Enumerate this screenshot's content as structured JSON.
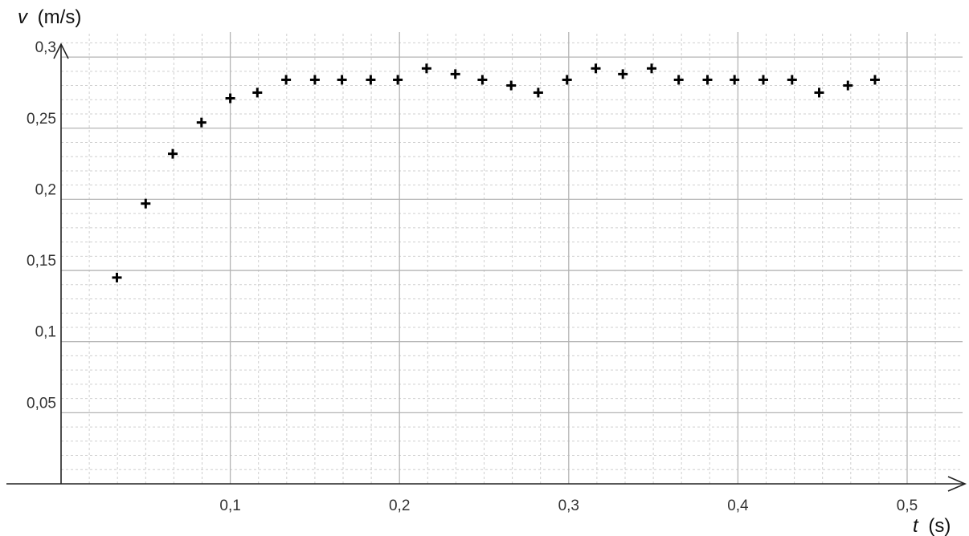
{
  "chart_data": {
    "type": "scatter",
    "title": "",
    "xlabel": {
      "symbol": "t",
      "unit": "(s)"
    },
    "ylabel": {
      "symbol": "v",
      "unit": "(m/s)"
    },
    "xlim": [
      0,
      0.53
    ],
    "ylim": [
      0,
      0.3
    ],
    "grid": true,
    "x_ticks": [
      {
        "value": 0.1,
        "label": "0,1"
      },
      {
        "value": 0.2,
        "label": "0,2"
      },
      {
        "value": 0.3,
        "label": "0,3"
      },
      {
        "value": 0.4,
        "label": "0,4"
      },
      {
        "value": 0.5,
        "label": "0,5"
      }
    ],
    "y_ticks": [
      {
        "value": 0.05,
        "label": "0,05"
      },
      {
        "value": 0.1,
        "label": "0,1"
      },
      {
        "value": 0.15,
        "label": "0,15"
      },
      {
        "value": 0.2,
        "label": "0,2"
      },
      {
        "value": 0.25,
        "label": "0,25"
      },
      {
        "value": 0.3,
        "label": "0,3"
      }
    ],
    "marker": "plus",
    "marker_color": "#000000",
    "points": [
      {
        "x": 0.033,
        "y": 0.145
      },
      {
        "x": 0.05,
        "y": 0.197
      },
      {
        "x": 0.066,
        "y": 0.232
      },
      {
        "x": 0.083,
        "y": 0.254
      },
      {
        "x": 0.1,
        "y": 0.271
      },
      {
        "x": 0.116,
        "y": 0.275
      },
      {
        "x": 0.133,
        "y": 0.284
      },
      {
        "x": 0.15,
        "y": 0.284
      },
      {
        "x": 0.166,
        "y": 0.284
      },
      {
        "x": 0.183,
        "y": 0.284
      },
      {
        "x": 0.199,
        "y": 0.284
      },
      {
        "x": 0.216,
        "y": 0.292
      },
      {
        "x": 0.233,
        "y": 0.288
      },
      {
        "x": 0.249,
        "y": 0.284
      },
      {
        "x": 0.266,
        "y": 0.28
      },
      {
        "x": 0.282,
        "y": 0.275
      },
      {
        "x": 0.299,
        "y": 0.284
      },
      {
        "x": 0.316,
        "y": 0.292
      },
      {
        "x": 0.332,
        "y": 0.288
      },
      {
        "x": 0.349,
        "y": 0.292
      },
      {
        "x": 0.365,
        "y": 0.284
      },
      {
        "x": 0.382,
        "y": 0.284
      },
      {
        "x": 0.398,
        "y": 0.284
      },
      {
        "x": 0.415,
        "y": 0.284
      },
      {
        "x": 0.432,
        "y": 0.284
      },
      {
        "x": 0.448,
        "y": 0.275
      },
      {
        "x": 0.465,
        "y": 0.28
      },
      {
        "x": 0.481,
        "y": 0.284
      }
    ]
  },
  "colors": {
    "major_grid": "#b4b4b4",
    "minor_grid": "#cfcfcf",
    "axis": "#222222",
    "marker": "#000000"
  }
}
